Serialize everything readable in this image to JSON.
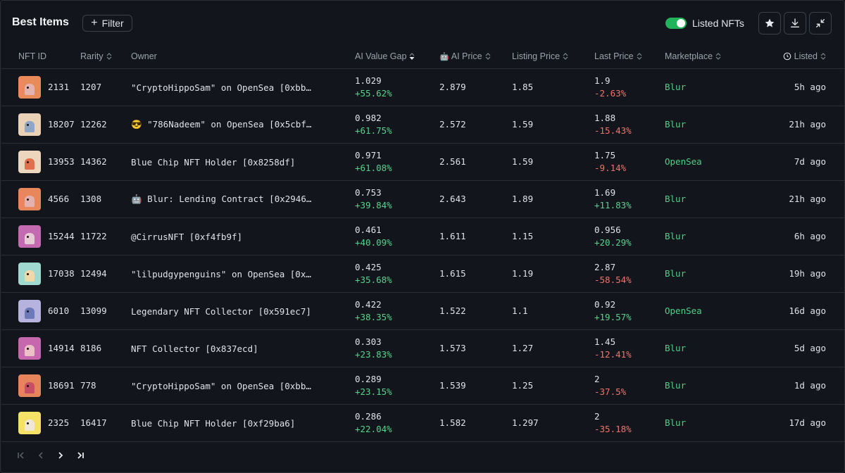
{
  "header": {
    "title": "Best Items",
    "filter_label": "Filter",
    "toggle_label": "Listed NFTs",
    "toggle_on": true
  },
  "columns": {
    "nft_id": "NFT ID",
    "rarity": "Rarity",
    "owner": "Owner",
    "ai_value_gap": "AI Value Gap",
    "ai_price": "AI Price",
    "listing_price": "Listing Price",
    "last_price": "Last Price",
    "marketplace": "Marketplace",
    "listed": "Listed"
  },
  "colors": {
    "positive": "#57d38c",
    "negative": "#f0746a",
    "toggle": "#21b35a"
  },
  "rows": [
    {
      "id": "2131",
      "rarity": "1207",
      "owner": "\"CryptoHippoSam\" on OpenSea [0xbb…",
      "gap": "1.029",
      "gap_pct": "+55.62%",
      "ai_price": "2.879",
      "list_price": "1.85",
      "last_price": "1.9",
      "last_pct": "-2.63%",
      "last_dir": "neg",
      "market": "Blur",
      "time": "5h ago",
      "thumb": "#e98a5a",
      "hippo": "#e4b3b0"
    },
    {
      "id": "18207",
      "rarity": "12262",
      "owner": "😎 \"786Nadeem\" on OpenSea [0x5cbff…",
      "gap": "0.982",
      "gap_pct": "+61.75%",
      "ai_price": "2.572",
      "list_price": "1.59",
      "last_price": "1.88",
      "last_pct": "-15.43%",
      "last_dir": "neg",
      "market": "Blur",
      "time": "21h ago",
      "thumb": "#ead2b6",
      "hippo": "#8fa6c8"
    },
    {
      "id": "13953",
      "rarity": "14362",
      "owner": "Blue Chip NFT Holder [0x8258df]",
      "gap": "0.971",
      "gap_pct": "+61.08%",
      "ai_price": "2.561",
      "list_price": "1.59",
      "last_price": "1.75",
      "last_pct": "-9.14%",
      "last_dir": "neg",
      "market": "OpenSea",
      "time": "7d ago",
      "thumb": "#ecd6be",
      "hippo": "#e26f4c"
    },
    {
      "id": "4566",
      "rarity": "1308",
      "owner": "🤖 Blur: Lending Contract [0x29469…",
      "gap": "0.753",
      "gap_pct": "+39.84%",
      "ai_price": "2.643",
      "list_price": "1.89",
      "last_price": "1.69",
      "last_pct": "+11.83%",
      "last_dir": "pos",
      "market": "Blur",
      "time": "21h ago",
      "thumb": "#e9875c",
      "hippo": "#e2b1b0"
    },
    {
      "id": "15244",
      "rarity": "11722",
      "owner": "@CirrusNFT [0xf4fb9f]",
      "gap": "0.461",
      "gap_pct": "+40.09%",
      "ai_price": "1.611",
      "list_price": "1.15",
      "last_price": "0.956",
      "last_pct": "+20.29%",
      "last_dir": "pos",
      "market": "Blur",
      "time": "6h ago",
      "thumb": "#c46ab0",
      "hippo": "#e7cbd4"
    },
    {
      "id": "17038",
      "rarity": "12494",
      "owner": "\"lilpudgypenguins\" on OpenSea [0x…",
      "gap": "0.425",
      "gap_pct": "+35.68%",
      "ai_price": "1.615",
      "list_price": "1.19",
      "last_price": "2.87",
      "last_pct": "-58.54%",
      "last_dir": "neg",
      "market": "Blur",
      "time": "19h ago",
      "thumb": "#9fd9d0",
      "hippo": "#f0d8a8"
    },
    {
      "id": "6010",
      "rarity": "13099",
      "owner": "Legendary NFT Collector [0x591ec7]",
      "gap": "0.422",
      "gap_pct": "+38.35%",
      "ai_price": "1.522",
      "list_price": "1.1",
      "last_price": "0.92",
      "last_pct": "+19.57%",
      "last_dir": "pos",
      "market": "OpenSea",
      "time": "16d ago",
      "thumb": "#b7b3df",
      "hippo": "#6c79b8"
    },
    {
      "id": "14914",
      "rarity": "8186",
      "owner": "NFT Collector [0x837ecd]",
      "gap": "0.303",
      "gap_pct": "+23.83%",
      "ai_price": "1.573",
      "list_price": "1.27",
      "last_price": "1.45",
      "last_pct": "-12.41%",
      "last_dir": "neg",
      "market": "Blur",
      "time": "5d ago",
      "thumb": "#c767ad",
      "hippo": "#eac1c5"
    },
    {
      "id": "18691",
      "rarity": "778",
      "owner": "\"CryptoHippoSam\" on OpenSea [0xbb…",
      "gap": "0.289",
      "gap_pct": "+23.15%",
      "ai_price": "1.539",
      "list_price": "1.25",
      "last_price": "2",
      "last_pct": "-37.5%",
      "last_dir": "neg",
      "market": "Blur",
      "time": "1d ago",
      "thumb": "#e6845c",
      "hippo": "#c74e64"
    },
    {
      "id": "2325",
      "rarity": "16417",
      "owner": "Blue Chip NFT Holder [0xf29ba6]",
      "gap": "0.286",
      "gap_pct": "+22.04%",
      "ai_price": "1.582",
      "list_price": "1.297",
      "last_price": "2",
      "last_pct": "-35.18%",
      "last_dir": "neg",
      "market": "Blur",
      "time": "17d ago",
      "thumb": "#f4e165",
      "hippo": "#f0e7d6"
    }
  ]
}
